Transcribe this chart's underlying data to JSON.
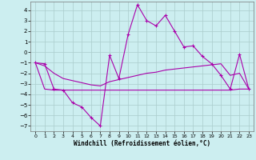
{
  "xlabel": "Windchill (Refroidissement éolien,°C)",
  "x": [
    0,
    1,
    2,
    3,
    4,
    5,
    6,
    7,
    8,
    9,
    10,
    11,
    12,
    13,
    14,
    15,
    16,
    17,
    18,
    19,
    20,
    21,
    22,
    23
  ],
  "line1": [
    -1.0,
    -1.1,
    -3.5,
    -3.6,
    -4.8,
    -5.2,
    -6.2,
    -7.0,
    -0.3,
    -2.5,
    1.7,
    4.5,
    3.0,
    2.5,
    3.5,
    2.0,
    0.5,
    0.6,
    -0.4,
    -1.1,
    -2.2,
    -3.5,
    -0.2,
    -3.5
  ],
  "line2": [
    -1.0,
    -1.3,
    -2.0,
    -2.5,
    -2.7,
    -2.9,
    -3.1,
    -3.2,
    -2.8,
    -2.6,
    -2.4,
    -2.2,
    -2.0,
    -1.9,
    -1.7,
    -1.6,
    -1.5,
    -1.4,
    -1.3,
    -1.2,
    -1.1,
    -2.2,
    -2.0,
    -3.5
  ],
  "line3": [
    -1.0,
    -3.5,
    -3.6,
    -3.6,
    -3.6,
    -3.6,
    -3.6,
    -3.6,
    -3.6,
    -3.6,
    -3.6,
    -3.6,
    -3.6,
    -3.6,
    -3.6,
    -3.6,
    -3.6,
    -3.6,
    -3.6,
    -3.6,
    -3.6,
    -3.6,
    -3.5,
    -3.5
  ],
  "line_color": "#aa00aa",
  "bg_color": "#cceef0",
  "grid_color": "#aacccc",
  "ylim": [
    -7.5,
    4.8
  ],
  "yticks": [
    -7,
    -6,
    -5,
    -4,
    -3,
    -2,
    -1,
    0,
    1,
    2,
    3,
    4
  ],
  "xticks": [
    0,
    1,
    2,
    3,
    4,
    5,
    6,
    7,
    8,
    9,
    10,
    11,
    12,
    13,
    14,
    15,
    16,
    17,
    18,
    19,
    20,
    21,
    22,
    23
  ]
}
